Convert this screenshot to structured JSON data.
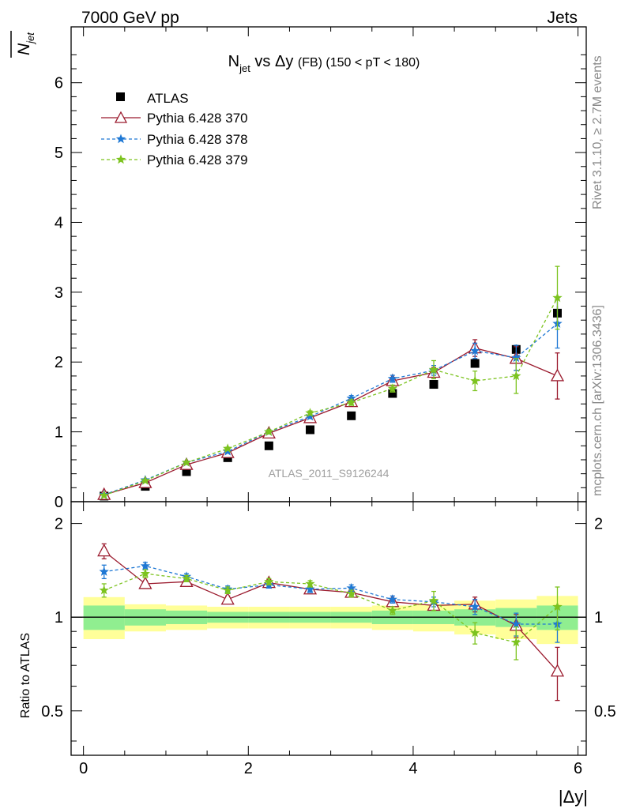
{
  "header": {
    "left": "7000 GeV pp",
    "right": "Jets",
    "rivet": "Rivet 3.1.10, ≥ 2.7M events",
    "mcplots": "mcplots.cern.ch [arXiv:1306.3436]",
    "watermark": "ATLAS_2011_S9126244"
  },
  "chart_data": [
    {
      "type": "scatter",
      "title": {
        "main": "N",
        "main_sub": "jet",
        "mid": " vs Δy ",
        "small": "(FB) (150 < pT < 180)"
      },
      "ylabel": "N",
      "ylabel_sub": "jet",
      "xlabel": "",
      "xlim": [
        -0.15,
        6.1
      ],
      "ylim": [
        0,
        6.8
      ],
      "yticks": [
        0,
        1,
        2,
        3,
        4,
        5,
        6
      ],
      "ytick_labels": [
        "0",
        "1",
        "2",
        "3",
        "4",
        "5",
        "6"
      ],
      "legend_position": "top-left",
      "x": [
        0.25,
        0.75,
        1.25,
        1.75,
        2.25,
        2.75,
        3.25,
        3.75,
        4.25,
        4.75,
        5.25,
        5.75
      ],
      "series": [
        {
          "name": "ATLAS",
          "color": "#000000",
          "marker": "square",
          "line": "none",
          "values": [
            0.08,
            0.22,
            0.43,
            0.63,
            0.8,
            1.03,
            1.23,
            1.55,
            1.68,
            1.98,
            2.18,
            2.7
          ],
          "errors": [
            0.01,
            0.01,
            0.01,
            0.02,
            0.02,
            0.02,
            0.03,
            0.03,
            0.04,
            0.05,
            0.07,
            0.1
          ]
        },
        {
          "name": "Pythia 6.428 370",
          "color": "#9b1b2e",
          "marker": "triangle",
          "line": "solid",
          "values": [
            0.1,
            0.27,
            0.53,
            0.7,
            0.98,
            1.2,
            1.43,
            1.73,
            1.85,
            2.2,
            2.05,
            1.8
          ],
          "errors": [
            0.01,
            0.01,
            0.02,
            0.02,
            0.03,
            0.03,
            0.04,
            0.05,
            0.07,
            0.12,
            0.17,
            0.33
          ]
        },
        {
          "name": "Pythia 6.428 378",
          "color": "#1f78d4",
          "marker": "star",
          "line": "dashed",
          "values": [
            0.1,
            0.31,
            0.56,
            0.72,
            1.0,
            1.22,
            1.48,
            1.76,
            1.88,
            2.16,
            2.06,
            2.55
          ],
          "errors": [
            0.01,
            0.01,
            0.02,
            0.02,
            0.03,
            0.03,
            0.04,
            0.05,
            0.07,
            0.11,
            0.18,
            0.35
          ]
        },
        {
          "name": "Pythia 6.428 379",
          "color": "#7cc31f",
          "marker": "star",
          "line": "dashed",
          "values": [
            0.09,
            0.3,
            0.56,
            0.76,
            1.0,
            1.27,
            1.42,
            1.62,
            1.89,
            1.73,
            1.8,
            2.92
          ],
          "errors": [
            0.01,
            0.01,
            0.02,
            0.02,
            0.03,
            0.03,
            0.04,
            0.05,
            0.13,
            0.14,
            0.25,
            0.45
          ]
        }
      ]
    },
    {
      "type": "scatter",
      "title": "",
      "ylabel": "Ratio to ATLAS",
      "xlabel": "|Δy|",
      "xlim": [
        -0.15,
        6.1
      ],
      "ylim": [
        0.36,
        2.35
      ],
      "log_scale_y": true,
      "yticks": [
        0.5,
        1,
        2
      ],
      "ytick_labels": [
        "0.5",
        "1",
        "2"
      ],
      "xticks": [
        0,
        2,
        4,
        6
      ],
      "xtick_labels": [
        "0",
        "2",
        "4",
        "6"
      ],
      "x": [
        0.25,
        0.75,
        1.25,
        1.75,
        2.25,
        2.75,
        3.25,
        3.75,
        4.25,
        4.75,
        5.25,
        5.75
      ],
      "bands": {
        "edges": [
          0.0,
          0.5,
          1.0,
          1.5,
          2.0,
          2.5,
          3.0,
          3.5,
          4.0,
          4.5,
          5.0,
          5.5,
          6.0
        ],
        "inner": {
          "color": "#90ee90",
          "lo": [
            0.91,
            0.94,
            0.95,
            0.96,
            0.96,
            0.96,
            0.96,
            0.95,
            0.95,
            0.94,
            0.93,
            0.91
          ],
          "hi": [
            1.09,
            1.06,
            1.05,
            1.04,
            1.04,
            1.04,
            1.04,
            1.05,
            1.05,
            1.06,
            1.07,
            1.09
          ]
        },
        "outer": {
          "color": "#ffff99",
          "lo": [
            0.85,
            0.9,
            0.91,
            0.92,
            0.92,
            0.92,
            0.92,
            0.91,
            0.9,
            0.88,
            0.85,
            0.82
          ],
          "hi": [
            1.16,
            1.1,
            1.09,
            1.08,
            1.08,
            1.08,
            1.08,
            1.09,
            1.1,
            1.13,
            1.14,
            1.17
          ]
        }
      },
      "series": [
        {
          "name": "Pythia 6.428 370",
          "color": "#9b1b2e",
          "marker": "triangle",
          "line": "solid",
          "values": [
            1.63,
            1.28,
            1.3,
            1.14,
            1.29,
            1.23,
            1.2,
            1.12,
            1.09,
            1.1,
            0.94,
            0.67
          ],
          "errors": [
            0.09,
            0.03,
            0.03,
            0.03,
            0.03,
            0.03,
            0.03,
            0.03,
            0.04,
            0.06,
            0.08,
            0.13
          ]
        },
        {
          "name": "Pythia 6.428 378",
          "color": "#1f78d4",
          "marker": "star",
          "line": "dashed",
          "values": [
            1.4,
            1.46,
            1.35,
            1.23,
            1.27,
            1.23,
            1.24,
            1.14,
            1.12,
            1.08,
            0.95,
            0.95
          ],
          "errors": [
            0.07,
            0.04,
            0.03,
            0.03,
            0.03,
            0.03,
            0.03,
            0.03,
            0.04,
            0.06,
            0.08,
            0.12
          ]
        },
        {
          "name": "Pythia 6.428 379",
          "color": "#7cc31f",
          "marker": "star",
          "line": "dashed",
          "values": [
            1.22,
            1.38,
            1.33,
            1.22,
            1.3,
            1.28,
            1.19,
            1.05,
            1.13,
            0.89,
            0.83,
            1.08
          ],
          "errors": [
            0.06,
            0.04,
            0.03,
            0.03,
            0.03,
            0.03,
            0.03,
            0.03,
            0.08,
            0.07,
            0.1,
            0.17
          ]
        }
      ]
    }
  ]
}
